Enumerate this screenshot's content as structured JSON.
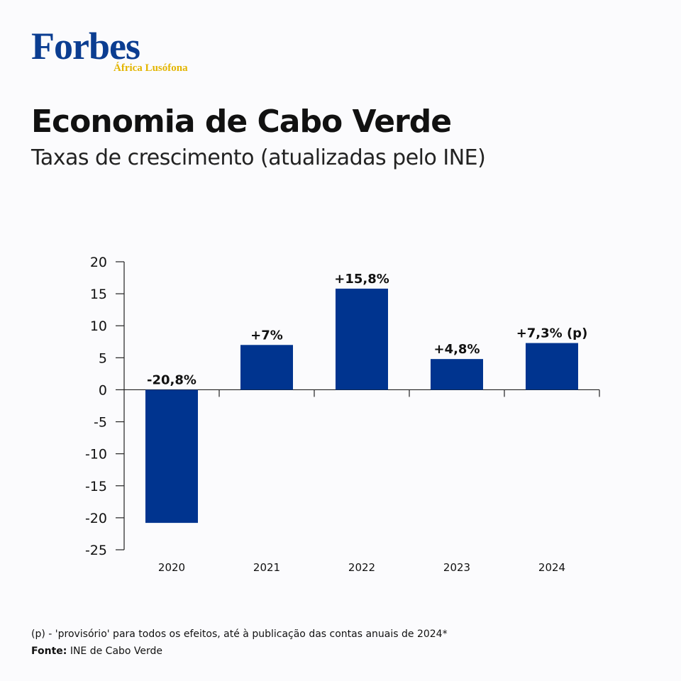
{
  "brand": {
    "name": "Forbes",
    "edition": "África Lusófona"
  },
  "colors": {
    "brand_blue": "#0b3d91",
    "bar": "#00348f",
    "edition_gold": "#e3b500"
  },
  "chart_data": {
    "type": "bar",
    "title": "Economia de Cabo Verde",
    "subtitle": "Taxas de crescimento (atualizadas pelo INE)",
    "categories": [
      "2020",
      "2021",
      "2022",
      "2023",
      "2024"
    ],
    "values": [
      -20.8,
      7,
      15.8,
      4.8,
      7.3
    ],
    "data_labels": [
      "-20,8%",
      "+7%",
      "+15,8%",
      "+4,8%",
      "+7,3% (p)"
    ],
    "ylim": [
      -25,
      20
    ],
    "yticks": [
      20,
      15,
      10,
      5,
      0,
      -5,
      -10,
      -15,
      -20,
      -25
    ],
    "xlabel": "",
    "ylabel": "",
    "grid": false,
    "legend": "none"
  },
  "footnote": "(p) - 'provisório' para todos os efeitos, até à publicação das contas anuais de 2024*",
  "source": {
    "label": "Fonte:",
    "text": "INE de Cabo Verde"
  }
}
